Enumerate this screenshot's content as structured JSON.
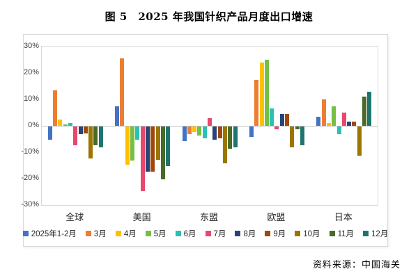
{
  "title": "图 5　2025 年我国针织产品月度出口增速",
  "source": "资料来源：中国海关",
  "chart_data": {
    "type": "bar",
    "title": "图 5　2025 年我国针织产品月度出口增速",
    "categories": [
      "全球",
      "美国",
      "东盟",
      "欧盟",
      "日本"
    ],
    "series": [
      {
        "name": "2025年1-2月",
        "color": "#4472C4",
        "values": [
          -5,
          7.5,
          -5.5,
          -4,
          3.5
        ]
      },
      {
        "name": "3月",
        "color": "#ED7D31",
        "values": [
          13.5,
          25.5,
          -3,
          17.5,
          10
        ]
      },
      {
        "name": "4月",
        "color": "#FFC000",
        "values": [
          2.5,
          -14.5,
          -2,
          24,
          1
        ]
      },
      {
        "name": "5月",
        "color": "#74BF44",
        "values": [
          0.5,
          -13,
          -3.5,
          25,
          7.5
        ]
      },
      {
        "name": "6月",
        "color": "#2CBFB4",
        "values": [
          1,
          -5,
          -4.5,
          6.5,
          -3
        ]
      },
      {
        "name": "7月",
        "color": "#E8486B",
        "values": [
          -7,
          -24.5,
          3,
          -1,
          5
        ]
      },
      {
        "name": "8月",
        "color": "#264478",
        "values": [
          -3,
          -17,
          -5,
          4.5,
          1.5
        ]
      },
      {
        "name": "9月",
        "color": "#9E480E",
        "values": [
          -2.5,
          -17,
          -4.5,
          4.5,
          1.5
        ]
      },
      {
        "name": "10月",
        "color": "#9B7500",
        "values": [
          -12,
          -12.5,
          -14,
          -8,
          -11
        ]
      },
      {
        "name": "11月",
        "color": "#486B2B",
        "values": [
          -7,
          -20,
          -8.5,
          -1,
          11
        ]
      },
      {
        "name": "12月",
        "color": "#1F756E",
        "values": [
          -8,
          -15,
          -8,
          -7,
          13
        ]
      }
    ],
    "ylim": [
      -30,
      30
    ],
    "ytick_values": [
      30,
      20,
      10,
      0,
      -10,
      -20,
      -30
    ],
    "ytick_labels": [
      "30%",
      "20%",
      "10%",
      "0%",
      "-10%",
      "-20%",
      "-30%"
    ],
    "grid": false,
    "legend_position": "bottom"
  }
}
